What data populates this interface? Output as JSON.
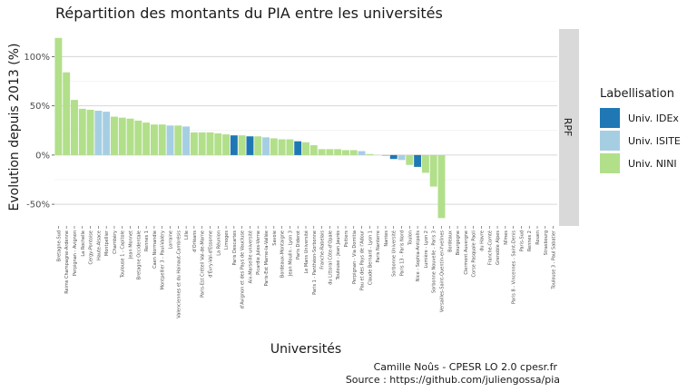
{
  "chart_data": {
    "type": "bar",
    "title": "Répartition des montants du PIA entre les universités",
    "xlabel": "Universités",
    "ylabel": "Evolution depuis 2013 (%)",
    "facet_label": "RPF",
    "ylim": [
      -72,
      128
    ],
    "yticks": [
      -50,
      0,
      50,
      100
    ],
    "ytick_labels": [
      "-50%",
      "0%",
      "50%",
      "100%"
    ],
    "grid": true,
    "legend": {
      "title": "Labellisation",
      "position": "right",
      "entries": [
        {
          "name": "Univ. IDEx",
          "color": "#1f78b4"
        },
        {
          "name": "Univ. ISITE",
          "color": "#a6cee3"
        },
        {
          "name": "Univ. NINI",
          "color": "#b2df8a"
        }
      ]
    },
    "caption": [
      "Camille Noûs - CPESR LO 2.0 cpesr.fr",
      "Source : https://github.com/juliengossa/pia"
    ],
    "categories": [
      "Bretagne-Sud",
      "Reims Champagne-Ardenne",
      "Perpignan - Avignon",
      "La Rochelle",
      "Cergy-Pontoise",
      "Haute-Alsace",
      "Montpellier",
      "Chambéry",
      "Toulouse 1 - Capitole",
      "Jean Monnet",
      "Bretagne Occidentale",
      "Rennes 1",
      "Caen Normandie",
      "Montpellier 3 - Paul-Valéry",
      "Lorraine",
      "Valenciennes et du Hainaut-Cambrésis",
      "Lille",
      "d'Orléans",
      "Paris-Est Créteil Val-de-Marne",
      "d'Évry-Val-d'Essonne",
      "La Réunion",
      "Limoges",
      "Paris Descartes",
      "d'Avignon et des Pays de Vaucluse",
      "Aix-Marseille université",
      "Picardie Jules-Verne",
      "Paris-Est Marne-la-Vallée",
      "Savoie",
      "Bordeaux-Montaigne",
      "Jean Moulin - Lyon 3",
      "Paris Diderot",
      "Le Mans Université",
      "Paris 1 - Panthéon-Sorbonne",
      "Franche-Rabelais",
      "du Littoral Côte-d'Opale",
      "Toulouse - Jean Jaurès",
      "Poitiers",
      "Perpignan - Via Domitia",
      "Pau et des Pays de l'Adour",
      "Claude Bernard - Lyon 1",
      "Paris Nanterre",
      "Nantes",
      "Sorbonne Université",
      "Paris 13 - Paris Nord",
      "Toulon",
      "Nice - Sophia-Antipolis",
      "Lumière - Lyon 2",
      "Sorbonne Nouvelle - Paris 3",
      "Versailles-Saint-Quentin-en-Yvelines",
      "Bordeaux",
      "Bourgogne",
      "Clermont Auvergne",
      "Corse Pasquale Paoli",
      "du Havre",
      "Franche-Comté",
      "Grenoble Alpes",
      "Nîmes",
      "Paris 8 - Vincennes - Saint-Denis",
      "Paris-Sud",
      "Rennes 2",
      "Rouen",
      "Strasbourg",
      "Toulouse 3 - Paul Sabatier"
    ],
    "values": [
      119,
      84,
      56,
      47,
      46,
      45,
      44,
      39,
      38,
      37,
      35,
      33,
      31,
      31,
      30,
      30,
      29,
      23,
      23,
      23,
      22,
      21,
      20,
      20,
      19,
      19,
      18,
      17,
      16,
      16,
      14,
      13,
      10,
      6,
      6,
      6,
      5,
      5,
      4,
      1,
      0,
      -1,
      -4,
      -5,
      -10,
      -12,
      -18,
      -32,
      -64,
      0,
      0,
      0,
      0,
      0,
      0,
      0,
      0,
      0,
      0,
      0,
      0,
      0,
      0
    ],
    "labels": [
      "NINI",
      "NINI",
      "NINI",
      "NINI",
      "NINI",
      "ISITE",
      "ISITE",
      "NINI",
      "NINI",
      "NINI",
      "NINI",
      "NINI",
      "NINI",
      "NINI",
      "ISITE",
      "NINI",
      "ISITE",
      "NINI",
      "NINI",
      "NINI",
      "NINI",
      "NINI",
      "IDEx",
      "NINI",
      "IDEx",
      "NINI",
      "ISITE",
      "NINI",
      "NINI",
      "NINI",
      "IDEx",
      "NINI",
      "NINI",
      "NINI",
      "NINI",
      "NINI",
      "NINI",
      "NINI",
      "ISITE",
      "NINI",
      "NINI",
      "ISITE",
      "IDEx",
      "ISITE",
      "NINI",
      "IDEx",
      "NINI",
      "NINI",
      "NINI",
      "NINI",
      "NINI",
      "NINI",
      "NINI",
      "NINI",
      "NINI",
      "NINI",
      "NINI",
      "NINI",
      "NINI",
      "NINI",
      "NINI",
      "NINI",
      "NINI"
    ],
    "colors": {
      "IDEx": "#1f78b4",
      "ISITE": "#a6cee3",
      "NINI": "#b2df8a"
    }
  }
}
